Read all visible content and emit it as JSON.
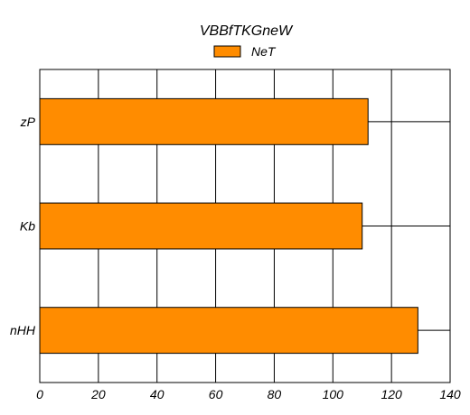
{
  "chart_data": {
    "type": "bar",
    "orientation": "horizontal",
    "title": "VBBfTKGneW",
    "categories": [
      "nHH",
      "Kb",
      "zP"
    ],
    "series": [
      {
        "name": "NeT",
        "color": "#ff8c00",
        "values": [
          129,
          110,
          112
        ]
      }
    ],
    "xlim": [
      0,
      140
    ],
    "x_ticks": [
      "0",
      "20",
      "40",
      "60",
      "80",
      "100",
      "120",
      "140"
    ],
    "grid": true,
    "legend_position": "top-center",
    "colors": {
      "bar_fill": "#ff8c00",
      "bar_stroke": "#000000",
      "grid": "#000000",
      "background": "#ffffff"
    }
  }
}
